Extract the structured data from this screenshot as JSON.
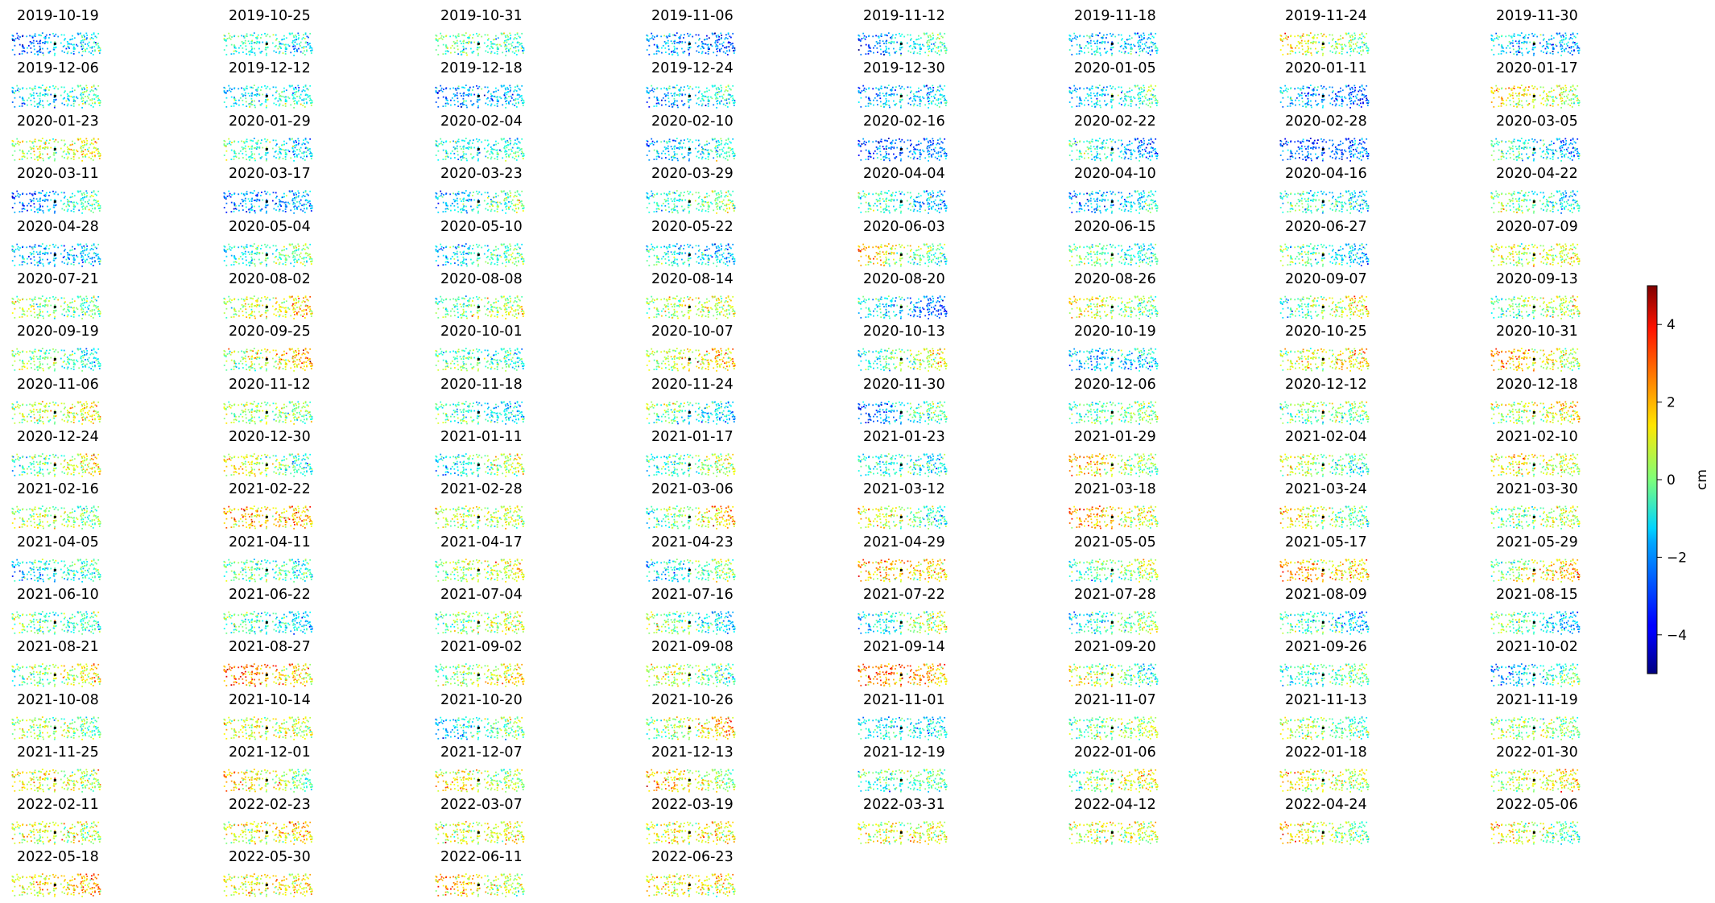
{
  "chart_data": {
    "type": "scatter",
    "title": "",
    "panel_titles": [
      "2019-10-19",
      "2019-10-25",
      "2019-10-31",
      "2019-11-06",
      "2019-11-12",
      "2019-11-18",
      "2019-11-24",
      "2019-11-30",
      "2019-12-06",
      "2019-12-12",
      "2019-12-18",
      "2019-12-24",
      "2019-12-30",
      "2020-01-05",
      "2020-01-11",
      "2020-01-17",
      "2020-01-23",
      "2020-01-29",
      "2020-02-04",
      "2020-02-10",
      "2020-02-16",
      "2020-02-22",
      "2020-02-28",
      "2020-03-05",
      "2020-03-11",
      "2020-03-17",
      "2020-03-23",
      "2020-03-29",
      "2020-04-04",
      "2020-04-10",
      "2020-04-16",
      "2020-04-22",
      "2020-04-28",
      "2020-05-04",
      "2020-05-10",
      "2020-05-22",
      "2020-06-03",
      "2020-06-15",
      "2020-06-27",
      "2020-07-09",
      "2020-07-21",
      "2020-08-02",
      "2020-08-08",
      "2020-08-14",
      "2020-08-20",
      "2020-08-26",
      "2020-09-07",
      "2020-09-13",
      "2020-09-19",
      "2020-09-25",
      "2020-10-01",
      "2020-10-07",
      "2020-10-13",
      "2020-10-19",
      "2020-10-25",
      "2020-10-31",
      "2020-11-06",
      "2020-11-12",
      "2020-11-18",
      "2020-11-24",
      "2020-11-30",
      "2020-12-06",
      "2020-12-12",
      "2020-12-18",
      "2020-12-24",
      "2020-12-30",
      "2021-01-11",
      "2021-01-17",
      "2021-01-23",
      "2021-01-29",
      "2021-02-04",
      "2021-02-10",
      "2021-02-16",
      "2021-02-22",
      "2021-02-28",
      "2021-03-06",
      "2021-03-12",
      "2021-03-18",
      "2021-03-24",
      "2021-03-30",
      "2021-04-05",
      "2021-04-11",
      "2021-04-17",
      "2021-04-23",
      "2021-04-29",
      "2021-05-05",
      "2021-05-17",
      "2021-05-29",
      "2021-06-10",
      "2021-06-22",
      "2021-07-04",
      "2021-07-16",
      "2021-07-22",
      "2021-07-28",
      "2021-08-09",
      "2021-08-15",
      "2021-08-21",
      "2021-08-27",
      "2021-09-02",
      "2021-09-08",
      "2021-09-14",
      "2021-09-20",
      "2021-09-26",
      "2021-10-02",
      "2021-10-08",
      "2021-10-14",
      "2021-10-20",
      "2021-10-26",
      "2021-11-01",
      "2021-11-07",
      "2021-11-13",
      "2021-11-19",
      "2021-11-25",
      "2021-12-01",
      "2021-12-07",
      "2021-12-13",
      "2021-12-19",
      "2022-01-06",
      "2022-01-18",
      "2022-01-30",
      "2022-02-11",
      "2022-02-23",
      "2022-03-07",
      "2022-03-19",
      "2022-03-31",
      "2022-04-12",
      "2022-04-24",
      "2022-05-06",
      "2022-05-18",
      "2022-05-30",
      "2022-06-11",
      "2022-06-23"
    ],
    "panel_mean_cm": [
      -2.0,
      -1.0,
      -0.5,
      -2.5,
      -1.5,
      -1.8,
      0.5,
      -1.8,
      -1.0,
      -1.2,
      -2.2,
      -1.5,
      -2.0,
      -1.2,
      -2.2,
      1.0,
      0.8,
      -1.0,
      -1.0,
      -1.5,
      -2.5,
      -1.5,
      -2.8,
      -1.2,
      -1.8,
      -2.2,
      -1.0,
      -0.5,
      -1.2,
      -1.8,
      -1.0,
      -0.5,
      -1.8,
      -0.5,
      -1.0,
      -1.5,
      0.5,
      -0.5,
      -0.8,
      0.8,
      0.0,
      1.0,
      0.0,
      0.5,
      -1.8,
      0.5,
      0.2,
      0.2,
      -0.5,
      1.0,
      -0.5,
      1.0,
      0.0,
      -1.8,
      1.0,
      1.5,
      0.8,
      0.2,
      -1.0,
      -1.0,
      -1.5,
      -0.2,
      0.0,
      0.8,
      0.2,
      0.2,
      -0.5,
      -0.2,
      -1.0,
      1.0,
      0.0,
      1.0,
      0.2,
      1.8,
      0.5,
      0.5,
      0.2,
      1.5,
      0.5,
      0.2,
      -1.0,
      -0.5,
      0.5,
      -1.0,
      1.8,
      0.0,
      1.8,
      1.0,
      -0.5,
      -1.0,
      0.2,
      -0.5,
      -0.5,
      -0.5,
      -1.0,
      -1.0,
      0.5,
      2.0,
      0.5,
      0.2,
      2.2,
      0.0,
      -0.5,
      -1.2,
      0.2,
      0.8,
      -1.0,
      0.8,
      -1.2,
      0.2,
      0.0,
      0.2,
      0.8,
      0.8,
      0.8,
      1.2,
      -0.5,
      0.5,
      1.0,
      0.8,
      0.8,
      1.2,
      0.8,
      1.2,
      0.8,
      0.8,
      0.8,
      0.5,
      1.5,
      1.2,
      1.0,
      1.2
    ],
    "colorbar": {
      "label": "cm",
      "colormap": "jet",
      "vmin": -5,
      "vmax": 5,
      "ticks": [
        -4,
        -2,
        0,
        2,
        4
      ],
      "tick_labels": [
        "−4",
        "−2",
        "0",
        "2",
        "4"
      ]
    },
    "reference_point": "black square marker at center of each panel"
  }
}
